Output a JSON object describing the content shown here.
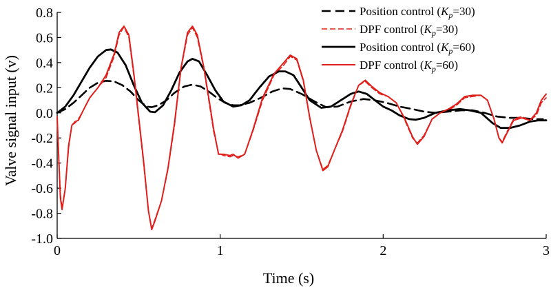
{
  "chart_data": {
    "type": "line",
    "title": "",
    "xlabel": "Time (s)",
    "ylabel": "Valve signal input (v)",
    "xlim": [
      0,
      3
    ],
    "ylim": [
      -1.0,
      0.8
    ],
    "xticks": [
      0,
      1,
      2,
      3
    ],
    "xtick_labels": [
      "0",
      "1",
      "2",
      "3"
    ],
    "yticks": [
      0.8,
      0.6,
      0.4,
      0.2,
      0.0,
      -0.2,
      -0.4,
      -0.6,
      -0.8,
      -1.0
    ],
    "ytick_labels": [
      "0.8",
      "0.6",
      "0.4",
      "0.2",
      "0.0",
      "-0.2",
      "-0.4",
      "-0.6",
      "-0.8",
      "-1.0"
    ],
    "grid": false,
    "legend_position": "top-right",
    "series": [
      {
        "name": "Position control (Kp=30)",
        "legend_text": "Position control (",
        "legend_param": "K",
        "legend_sub": "p",
        "legend_value": "=30)",
        "color": "#000000",
        "style": "dashed",
        "width": 2.6,
        "points": [
          [
            0,
            0.0
          ],
          [
            0.05,
            0.03
          ],
          [
            0.1,
            0.08
          ],
          [
            0.15,
            0.14
          ],
          [
            0.2,
            0.2
          ],
          [
            0.25,
            0.24
          ],
          [
            0.3,
            0.255
          ],
          [
            0.35,
            0.25
          ],
          [
            0.4,
            0.22
          ],
          [
            0.45,
            0.17
          ],
          [
            0.5,
            0.1
          ],
          [
            0.55,
            0.05
          ],
          [
            0.58,
            0.045
          ],
          [
            0.62,
            0.06
          ],
          [
            0.67,
            0.1
          ],
          [
            0.72,
            0.16
          ],
          [
            0.78,
            0.21
          ],
          [
            0.83,
            0.225
          ],
          [
            0.88,
            0.21
          ],
          [
            0.93,
            0.17
          ],
          [
            0.98,
            0.12
          ],
          [
            1.03,
            0.08
          ],
          [
            1.08,
            0.06
          ],
          [
            1.12,
            0.06
          ],
          [
            1.18,
            0.08
          ],
          [
            1.25,
            0.12
          ],
          [
            1.32,
            0.17
          ],
          [
            1.38,
            0.195
          ],
          [
            1.43,
            0.19
          ],
          [
            1.5,
            0.15
          ],
          [
            1.58,
            0.09
          ],
          [
            1.65,
            0.045
          ],
          [
            1.72,
            0.05
          ],
          [
            1.8,
            0.09
          ],
          [
            1.88,
            0.11
          ],
          [
            1.95,
            0.1
          ],
          [
            2.02,
            0.08
          ],
          [
            2.1,
            0.05
          ],
          [
            2.18,
            0.03
          ],
          [
            2.25,
            0.01
          ],
          [
            2.32,
            0.0
          ],
          [
            2.4,
            0.01
          ],
          [
            2.48,
            0.02
          ],
          [
            2.55,
            0.02
          ],
          [
            2.62,
            0.0
          ],
          [
            2.7,
            -0.03
          ],
          [
            2.78,
            -0.04
          ],
          [
            2.85,
            -0.04
          ],
          [
            2.92,
            -0.05
          ],
          [
            2.98,
            -0.05
          ]
        ]
      },
      {
        "name": "DPF control (Kp=30)",
        "legend_text": "DPF control (",
        "legend_param": "K",
        "legend_sub": "p",
        "legend_value": "=30)",
        "color": "#e0201c",
        "style": "dashed-thin",
        "width": 1.6,
        "points": [
          [
            0,
            -0.05
          ],
          [
            0.01,
            -0.35
          ],
          [
            0.02,
            -0.65
          ],
          [
            0.03,
            -0.76
          ],
          [
            0.05,
            -0.6
          ],
          [
            0.07,
            -0.28
          ],
          [
            0.09,
            -0.1
          ],
          [
            0.11,
            -0.08
          ],
          [
            0.13,
            -0.05
          ],
          [
            0.16,
            0.02
          ],
          [
            0.2,
            0.12
          ],
          [
            0.25,
            0.2
          ],
          [
            0.3,
            0.28
          ],
          [
            0.35,
            0.45
          ],
          [
            0.38,
            0.62
          ],
          [
            0.41,
            0.685
          ],
          [
            0.44,
            0.6
          ],
          [
            0.47,
            0.3
          ],
          [
            0.5,
            -0.05
          ],
          [
            0.53,
            -0.4
          ],
          [
            0.56,
            -0.78
          ],
          [
            0.58,
            -0.92
          ],
          [
            0.6,
            -0.85
          ],
          [
            0.64,
            -0.7
          ],
          [
            0.68,
            -0.45
          ],
          [
            0.72,
            -0.1
          ],
          [
            0.76,
            0.35
          ],
          [
            0.8,
            0.62
          ],
          [
            0.83,
            0.68
          ],
          [
            0.86,
            0.6
          ],
          [
            0.9,
            0.35
          ],
          [
            0.93,
            0.1
          ],
          [
            0.96,
            -0.15
          ],
          [
            0.99,
            -0.32
          ],
          [
            1.02,
            -0.34
          ],
          [
            1.06,
            -0.35
          ],
          [
            1.08,
            -0.34
          ],
          [
            1.11,
            -0.35
          ],
          [
            1.15,
            -0.33
          ],
          [
            1.2,
            -0.15
          ],
          [
            1.26,
            0.1
          ],
          [
            1.33,
            0.3
          ],
          [
            1.39,
            0.38
          ],
          [
            1.43,
            0.45
          ],
          [
            1.47,
            0.42
          ],
          [
            1.51,
            0.25
          ],
          [
            1.55,
            -0.05
          ],
          [
            1.59,
            -0.3
          ],
          [
            1.63,
            -0.45
          ],
          [
            1.66,
            -0.42
          ],
          [
            1.7,
            -0.3
          ],
          [
            1.75,
            -0.15
          ],
          [
            1.8,
            0.05
          ],
          [
            1.85,
            0.22
          ],
          [
            1.89,
            0.25
          ],
          [
            1.93,
            0.2
          ],
          [
            1.98,
            0.15
          ],
          [
            2.03,
            0.13
          ],
          [
            2.08,
            0.08
          ],
          [
            2.13,
            -0.05
          ],
          [
            2.18,
            -0.2
          ],
          [
            2.21,
            -0.24
          ],
          [
            2.25,
            -0.18
          ],
          [
            2.3,
            -0.05
          ],
          [
            2.35,
            0.0
          ],
          [
            2.4,
            0.02
          ],
          [
            2.45,
            0.06
          ],
          [
            2.5,
            0.12
          ],
          [
            2.55,
            0.13
          ],
          [
            2.6,
            0.14
          ],
          [
            2.64,
            0.1
          ],
          [
            2.68,
            -0.05
          ],
          [
            2.71,
            -0.2
          ],
          [
            2.73,
            -0.23
          ],
          [
            2.76,
            -0.15
          ],
          [
            2.8,
            -0.05
          ],
          [
            2.85,
            -0.03
          ],
          [
            2.9,
            -0.06
          ],
          [
            2.94,
            -0.02
          ],
          [
            2.97,
            0.08
          ],
          [
            3.0,
            0.12
          ]
        ]
      },
      {
        "name": "Position control (Kp=60)",
        "legend_text": "Position control (",
        "legend_param": "K",
        "legend_sub": "p",
        "legend_value": "=60)",
        "color": "#000000",
        "style": "solid",
        "width": 2.8,
        "points": [
          [
            0,
            0.0
          ],
          [
            0.05,
            0.05
          ],
          [
            0.1,
            0.14
          ],
          [
            0.15,
            0.25
          ],
          [
            0.2,
            0.36
          ],
          [
            0.25,
            0.45
          ],
          [
            0.3,
            0.5
          ],
          [
            0.33,
            0.505
          ],
          [
            0.37,
            0.48
          ],
          [
            0.42,
            0.38
          ],
          [
            0.47,
            0.22
          ],
          [
            0.52,
            0.08
          ],
          [
            0.57,
            0.01
          ],
          [
            0.6,
            0.005
          ],
          [
            0.65,
            0.06
          ],
          [
            0.7,
            0.18
          ],
          [
            0.75,
            0.32
          ],
          [
            0.8,
            0.41
          ],
          [
            0.83,
            0.43
          ],
          [
            0.87,
            0.41
          ],
          [
            0.92,
            0.3
          ],
          [
            0.97,
            0.18
          ],
          [
            1.02,
            0.09
          ],
          [
            1.08,
            0.05
          ],
          [
            1.13,
            0.06
          ],
          [
            1.18,
            0.1
          ],
          [
            1.24,
            0.2
          ],
          [
            1.3,
            0.29
          ],
          [
            1.36,
            0.33
          ],
          [
            1.4,
            0.33
          ],
          [
            1.45,
            0.3
          ],
          [
            1.5,
            0.2
          ],
          [
            1.55,
            0.1
          ],
          [
            1.62,
            0.04
          ],
          [
            1.68,
            0.05
          ],
          [
            1.74,
            0.1
          ],
          [
            1.8,
            0.15
          ],
          [
            1.85,
            0.17
          ],
          [
            1.9,
            0.15
          ],
          [
            1.95,
            0.1
          ],
          [
            2.0,
            0.05
          ],
          [
            2.05,
            0.02
          ],
          [
            2.1,
            -0.02
          ],
          [
            2.16,
            -0.05
          ],
          [
            2.2,
            -0.055
          ],
          [
            2.25,
            -0.04
          ],
          [
            2.32,
            0.0
          ],
          [
            2.4,
            0.02
          ],
          [
            2.47,
            0.03
          ],
          [
            2.53,
            0.02
          ],
          [
            2.6,
            0.0
          ],
          [
            2.67,
            -0.08
          ],
          [
            2.72,
            -0.12
          ],
          [
            2.78,
            -0.12
          ],
          [
            2.84,
            -0.1
          ],
          [
            2.9,
            -0.07
          ],
          [
            2.95,
            -0.06
          ],
          [
            3.0,
            -0.06
          ]
        ]
      },
      {
        "name": "DPF control (Kp=60)",
        "legend_text": "DPF  control (",
        "legend_param": "K",
        "legend_sub": "p",
        "legend_value": "=60)",
        "color": "#e0201c",
        "style": "solid",
        "width": 2.0,
        "points": [
          [
            0,
            -0.03
          ],
          [
            0.01,
            -0.38
          ],
          [
            0.02,
            -0.68
          ],
          [
            0.03,
            -0.77
          ],
          [
            0.05,
            -0.6
          ],
          [
            0.07,
            -0.26
          ],
          [
            0.09,
            -0.1
          ],
          [
            0.11,
            -0.07
          ],
          [
            0.13,
            -0.06
          ],
          [
            0.16,
            0.02
          ],
          [
            0.2,
            0.12
          ],
          [
            0.25,
            0.2
          ],
          [
            0.3,
            0.3
          ],
          [
            0.35,
            0.47
          ],
          [
            0.38,
            0.64
          ],
          [
            0.41,
            0.69
          ],
          [
            0.44,
            0.62
          ],
          [
            0.47,
            0.32
          ],
          [
            0.5,
            -0.03
          ],
          [
            0.53,
            -0.38
          ],
          [
            0.56,
            -0.78
          ],
          [
            0.58,
            -0.93
          ],
          [
            0.6,
            -0.86
          ],
          [
            0.64,
            -0.7
          ],
          [
            0.68,
            -0.44
          ],
          [
            0.72,
            -0.08
          ],
          [
            0.76,
            0.36
          ],
          [
            0.8,
            0.64
          ],
          [
            0.83,
            0.69
          ],
          [
            0.86,
            0.62
          ],
          [
            0.9,
            0.36
          ],
          [
            0.93,
            0.12
          ],
          [
            0.96,
            -0.13
          ],
          [
            0.99,
            -0.33
          ],
          [
            1.02,
            -0.33
          ],
          [
            1.06,
            -0.34
          ],
          [
            1.08,
            -0.33
          ],
          [
            1.11,
            -0.36
          ],
          [
            1.15,
            -0.33
          ],
          [
            1.2,
            -0.14
          ],
          [
            1.26,
            0.12
          ],
          [
            1.33,
            0.31
          ],
          [
            1.39,
            0.4
          ],
          [
            1.43,
            0.46
          ],
          [
            1.47,
            0.43
          ],
          [
            1.51,
            0.26
          ],
          [
            1.55,
            -0.04
          ],
          [
            1.59,
            -0.3
          ],
          [
            1.63,
            -0.46
          ],
          [
            1.66,
            -0.43
          ],
          [
            1.7,
            -0.3
          ],
          [
            1.75,
            -0.14
          ],
          [
            1.8,
            0.06
          ],
          [
            1.85,
            0.22
          ],
          [
            1.89,
            0.26
          ],
          [
            1.93,
            0.21
          ],
          [
            1.98,
            0.16
          ],
          [
            2.03,
            0.13
          ],
          [
            2.08,
            0.08
          ],
          [
            2.13,
            -0.04
          ],
          [
            2.18,
            -0.19
          ],
          [
            2.21,
            -0.25
          ],
          [
            2.25,
            -0.19
          ],
          [
            2.3,
            -0.05
          ],
          [
            2.35,
            0.0
          ],
          [
            2.4,
            0.03
          ],
          [
            2.45,
            0.07
          ],
          [
            2.5,
            0.13
          ],
          [
            2.55,
            0.14
          ],
          [
            2.6,
            0.14
          ],
          [
            2.64,
            0.1
          ],
          [
            2.68,
            -0.05
          ],
          [
            2.71,
            -0.2
          ],
          [
            2.73,
            -0.24
          ],
          [
            2.76,
            -0.16
          ],
          [
            2.8,
            -0.06
          ],
          [
            2.85,
            -0.04
          ],
          [
            2.9,
            -0.06
          ],
          [
            2.94,
            0.0
          ],
          [
            2.97,
            0.1
          ],
          [
            3.0,
            0.15
          ]
        ]
      }
    ]
  }
}
